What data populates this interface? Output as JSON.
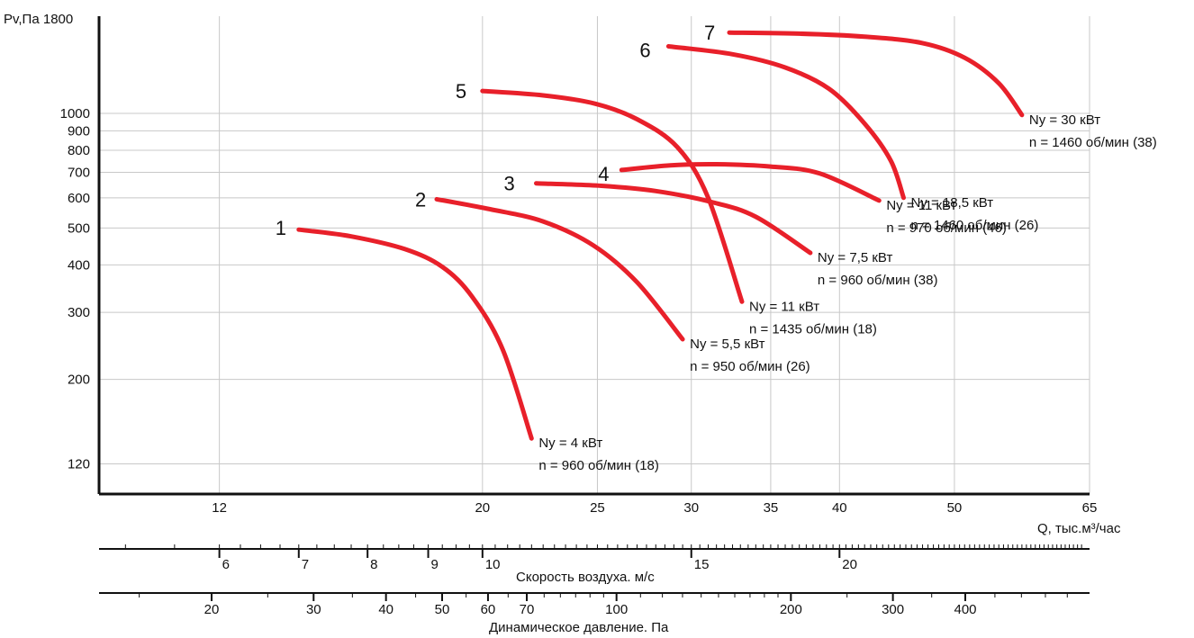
{
  "chart_data": {
    "type": "line",
    "title": "",
    "x_axis": {
      "label": "Q, тыс.м³/час",
      "scale": "log",
      "range": [
        9.5,
        65
      ],
      "ticks": [
        12,
        20,
        25,
        30,
        35,
        40,
        50,
        65
      ],
      "grid": true
    },
    "y_axis": {
      "label": "Pv,Па 1800",
      "scale": "log",
      "range": [
        100,
        1800
      ],
      "ticks": [
        120,
        200,
        300,
        400,
        500,
        600,
        700,
        800,
        900,
        1000
      ],
      "tick_labels": [
        "120",
        "200",
        "300",
        "400",
        "500",
        "600",
        "700",
        "800",
        "900",
        "1000"
      ],
      "grid": true
    },
    "color": "#e8202a",
    "series": [
      {
        "name": "1",
        "label_lines": [
          "Ny = 4 кВт",
          "n = 960 об/мин (18)"
        ],
        "points": [
          [
            14.0,
            495
          ],
          [
            15.5,
            475
          ],
          [
            17.2,
            440
          ],
          [
            18.5,
            395
          ],
          [
            19.6,
            330
          ],
          [
            20.8,
            240
          ],
          [
            22.0,
            140
          ]
        ]
      },
      {
        "name": "2",
        "label_lines": [
          "Ny = 5,5 кВт",
          "n = 950 об/мин (26)"
        ],
        "points": [
          [
            18.3,
            595
          ],
          [
            20.3,
            560
          ],
          [
            22.5,
            520
          ],
          [
            24.8,
            450
          ],
          [
            27.0,
            360
          ],
          [
            29.5,
            255
          ]
        ]
      },
      {
        "name": "3",
        "label_lines": [
          "Ny = 7,5 кВт",
          "n = 960 об/мин (38)"
        ],
        "points": [
          [
            22.2,
            655
          ],
          [
            25.2,
            645
          ],
          [
            28.0,
            625
          ],
          [
            31.2,
            585
          ],
          [
            34.0,
            535
          ],
          [
            37.8,
            430
          ]
        ]
      },
      {
        "name": "4",
        "label_lines": [
          "Ny = 11 кВт",
          "n = 970 об/мин (46)"
        ],
        "points": [
          [
            26.2,
            710
          ],
          [
            28.8,
            730
          ],
          [
            31.5,
            735
          ],
          [
            35.0,
            725
          ],
          [
            38.5,
            695
          ],
          [
            43.2,
            590
          ]
        ]
      },
      {
        "name": "5",
        "label_lines": [
          "Ny = 11 кВт",
          "n = 1435 об/мин (18)"
        ],
        "points": [
          [
            20.0,
            1145
          ],
          [
            22.5,
            1115
          ],
          [
            24.9,
            1060
          ],
          [
            27.0,
            965
          ],
          [
            29.2,
            815
          ],
          [
            31.0,
            600
          ],
          [
            33.1,
            320
          ]
        ]
      },
      {
        "name": "6",
        "label_lines": [
          "Ny = 18,5 кВт",
          "n = 1460 об/мин (26)"
        ],
        "points": [
          [
            28.7,
            1500
          ],
          [
            32.5,
            1430
          ],
          [
            36.0,
            1320
          ],
          [
            39.2,
            1160
          ],
          [
            42.0,
            940
          ],
          [
            44.2,
            750
          ],
          [
            45.3,
            600
          ]
        ]
      },
      {
        "name": "7",
        "label_lines": [
          "Ny = 30 кВт",
          "n = 1460 об/мин (38)"
        ],
        "points": [
          [
            32.3,
            1630
          ],
          [
            37.0,
            1620
          ],
          [
            42.0,
            1590
          ],
          [
            47.0,
            1530
          ],
          [
            51.0,
            1400
          ],
          [
            54.5,
            1200
          ],
          [
            57.0,
            990
          ]
        ]
      }
    ]
  },
  "speed_scale": {
    "label": "Скорость воздуха. м/с",
    "major_ticks": [
      6,
      7,
      8,
      9,
      10,
      15,
      20
    ]
  },
  "pressure_scale": {
    "label": "Динамическое давление. Па",
    "ticks": [
      20,
      30,
      40,
      50,
      60,
      70,
      100,
      200,
      300,
      400
    ]
  }
}
